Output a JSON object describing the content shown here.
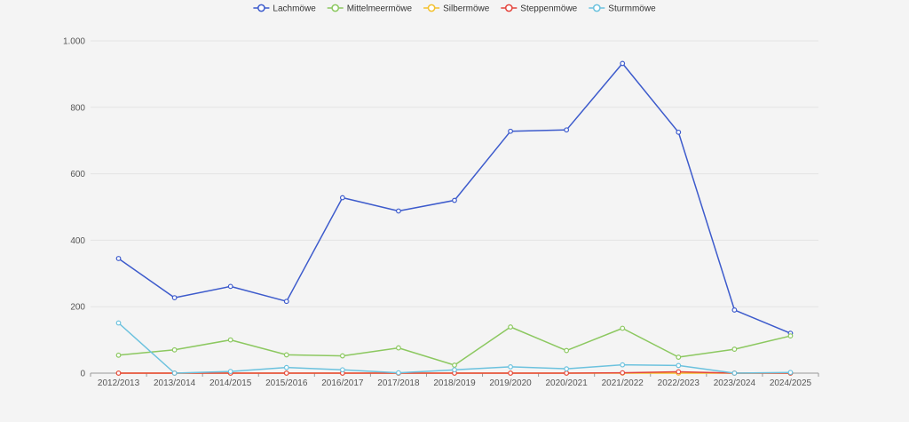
{
  "chart_data": {
    "type": "line",
    "title": "",
    "xlabel": "",
    "ylabel": "",
    "ylim": [
      0,
      1000
    ],
    "y_ticks": [
      0,
      200,
      400,
      600,
      800,
      1000
    ],
    "y_tick_labels": [
      "0",
      "200",
      "400",
      "600",
      "800",
      "1.000"
    ],
    "grid": true,
    "legend_position": "top-center",
    "categories": [
      "2012/2013",
      "2013/2014",
      "2014/2015",
      "2015/2016",
      "2016/2017",
      "2017/2018",
      "2018/2019",
      "2019/2020",
      "2020/2021",
      "2021/2022",
      "2022/2023",
      "2023/2024",
      "2024/2025"
    ],
    "series": [
      {
        "name": "Lachmöwe",
        "color": "#3d5bcc",
        "values": [
          345,
          227,
          261,
          216,
          528,
          488,
          520,
          728,
          732,
          932,
          725,
          190,
          120
        ]
      },
      {
        "name": "Mittelmeermöwe",
        "color": "#8cc860",
        "values": [
          54,
          70,
          100,
          55,
          52,
          76,
          24,
          139,
          68,
          135,
          48,
          72,
          112
        ]
      },
      {
        "name": "Silbermöwe",
        "color": "#f3c12e",
        "values": [
          0,
          0,
          0,
          0,
          0,
          0,
          0,
          0,
          0,
          0,
          0,
          0,
          0
        ]
      },
      {
        "name": "Steppenmöwe",
        "color": "#e4453d",
        "values": [
          0,
          0,
          0,
          0,
          0,
          0,
          0,
          0,
          0,
          1,
          4,
          0,
          0
        ]
      },
      {
        "name": "Sturmmöwe",
        "color": "#6cc2de",
        "values": [
          151,
          0,
          5,
          17,
          10,
          1,
          10,
          19,
          13,
          25,
          23,
          0,
          2
        ]
      }
    ]
  }
}
